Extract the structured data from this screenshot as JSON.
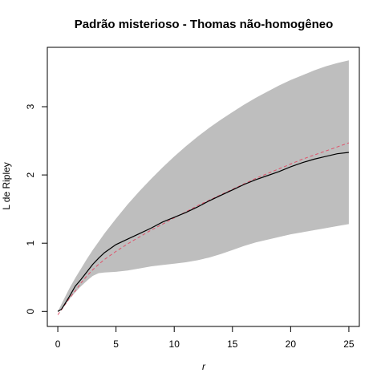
{
  "chart_data": {
    "type": "line",
    "title": "Padrão misterioso - Thomas não-homogêneo",
    "xlabel": "r",
    "ylabel": "L de Ripley",
    "xlim": [
      -0.9,
      25.9
    ],
    "ylim": [
      -0.22,
      3.87
    ],
    "x_ticks": [
      0,
      5,
      10,
      15,
      20,
      25
    ],
    "y_ticks": [
      0,
      1,
      2,
      3
    ],
    "grid": false,
    "legend": "none",
    "colors": {
      "envelope": "#bebebe",
      "observed": "#000000",
      "theoretical": "#df536b",
      "axis": "#000000"
    },
    "envelope": {
      "x": [
        0,
        0.5,
        1,
        1.5,
        2,
        2.5,
        3,
        3.5,
        4,
        5,
        6,
        7,
        8,
        9,
        10,
        11,
        12,
        13,
        14,
        15,
        16,
        17,
        18,
        19,
        20,
        21,
        22,
        23,
        24,
        25
      ],
      "lower": [
        0,
        0.08,
        0.18,
        0.28,
        0.37,
        0.45,
        0.52,
        0.56,
        0.57,
        0.58,
        0.6,
        0.63,
        0.66,
        0.68,
        0.7,
        0.72,
        0.75,
        0.79,
        0.84,
        0.9,
        0.96,
        1.01,
        1.05,
        1.09,
        1.13,
        1.16,
        1.19,
        1.22,
        1.25,
        1.28
      ],
      "upper": [
        0,
        0.17,
        0.34,
        0.49,
        0.63,
        0.77,
        0.9,
        1.02,
        1.14,
        1.36,
        1.57,
        1.76,
        1.94,
        2.11,
        2.27,
        2.42,
        2.56,
        2.69,
        2.81,
        2.92,
        3.03,
        3.13,
        3.22,
        3.31,
        3.39,
        3.46,
        3.53,
        3.59,
        3.64,
        3.68
      ]
    },
    "series": [
      {
        "role": "observed",
        "style": "solid",
        "x": [
          0,
          0.3,
          0.5,
          1,
          1.5,
          2,
          2.5,
          3,
          3.5,
          4,
          5,
          6,
          7,
          8,
          9,
          10,
          11,
          12,
          13,
          14,
          15,
          16,
          17,
          18,
          19,
          20,
          21,
          22,
          23,
          24,
          25
        ],
        "y": [
          0,
          0.03,
          0.08,
          0.22,
          0.37,
          0.47,
          0.58,
          0.69,
          0.78,
          0.86,
          0.98,
          1.06,
          1.14,
          1.22,
          1.31,
          1.38,
          1.45,
          1.53,
          1.62,
          1.7,
          1.78,
          1.86,
          1.93,
          1.99,
          2.05,
          2.12,
          2.18,
          2.23,
          2.27,
          2.31,
          2.33
        ]
      },
      {
        "role": "theoretical",
        "style": "dashed",
        "x": [
          0,
          0.3,
          0.5,
          1,
          1.5,
          2,
          2.5,
          3,
          3.5,
          4,
          5,
          6,
          7,
          8,
          9,
          10,
          11,
          12,
          13,
          14,
          15,
          16,
          17,
          18,
          19,
          20,
          21,
          22,
          23,
          24,
          25
        ],
        "y": [
          -0.05,
          0.02,
          0.07,
          0.19,
          0.3,
          0.42,
          0.52,
          0.61,
          0.69,
          0.76,
          0.88,
          0.99,
          1.09,
          1.19,
          1.28,
          1.37,
          1.46,
          1.55,
          1.63,
          1.71,
          1.79,
          1.87,
          1.95,
          2.02,
          2.09,
          2.16,
          2.23,
          2.29,
          2.35,
          2.41,
          2.47
        ]
      }
    ]
  }
}
